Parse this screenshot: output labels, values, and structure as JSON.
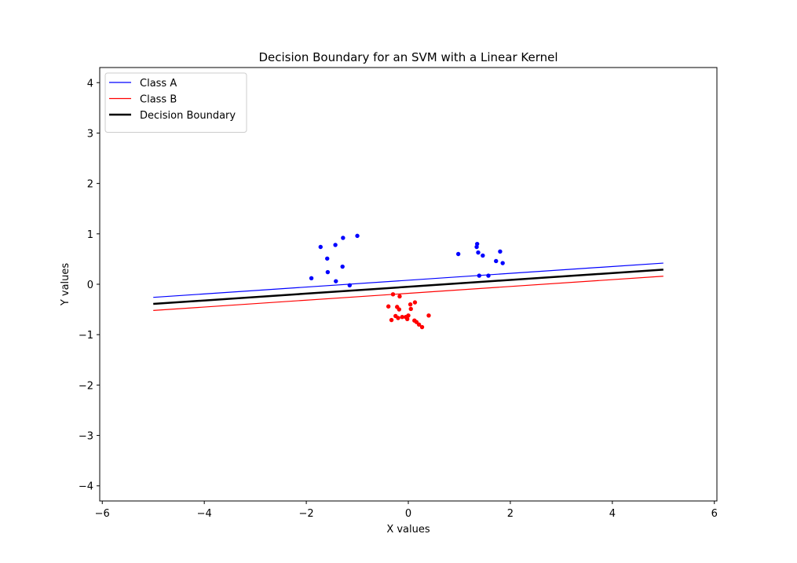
{
  "chart_data": {
    "type": "scatter",
    "title": "Decision Boundary for an SVM with a Linear Kernel",
    "xlabel": "X values",
    "ylabel": "Y values",
    "xlim": [
      -6.05,
      6.05
    ],
    "ylim": [
      -4.3,
      4.3
    ],
    "xticks": [
      -6,
      -4,
      -2,
      0,
      2,
      4,
      6
    ],
    "yticks": [
      -4,
      -3,
      -2,
      -1,
      0,
      1,
      2,
      3,
      4
    ],
    "grid": false,
    "legend_position": "top-left",
    "series": [
      {
        "name": "Class A",
        "kind": "line",
        "color": "#0000ff",
        "width": 1.2,
        "x": [
          -5,
          5
        ],
        "y": [
          -0.26,
          0.42
        ]
      },
      {
        "name": "Class B",
        "kind": "line",
        "color": "#ff0000",
        "width": 1.2,
        "x": [
          -5,
          5
        ],
        "y": [
          -0.52,
          0.16
        ]
      },
      {
        "name": "Decision Boundary",
        "kind": "line",
        "color": "#000000",
        "width": 2.5,
        "x": [
          -5,
          5
        ],
        "y": [
          -0.39,
          0.29
        ]
      },
      {
        "name": "",
        "kind": "points",
        "color": "#0000ff",
        "points": [
          [
            -1.0,
            0.96
          ],
          [
            -1.28,
            0.92
          ],
          [
            -1.43,
            0.78
          ],
          [
            -1.72,
            0.74
          ],
          [
            -1.59,
            0.51
          ],
          [
            -1.29,
            0.35
          ],
          [
            -1.58,
            0.24
          ],
          [
            -1.9,
            0.12
          ],
          [
            -1.42,
            0.06
          ],
          [
            -1.15,
            -0.02
          ],
          [
            1.35,
            0.8
          ],
          [
            1.34,
            0.74
          ],
          [
            1.37,
            0.63
          ],
          [
            1.46,
            0.57
          ],
          [
            0.98,
            0.6
          ],
          [
            1.8,
            0.65
          ],
          [
            1.72,
            0.46
          ],
          [
            1.85,
            0.42
          ],
          [
            1.39,
            0.17
          ],
          [
            1.57,
            0.17
          ]
        ]
      },
      {
        "name": "",
        "kind": "points",
        "color": "#ff0000",
        "points": [
          [
            -0.3,
            -0.2
          ],
          [
            -0.17,
            -0.24
          ],
          [
            -0.39,
            -0.44
          ],
          [
            -0.22,
            -0.45
          ],
          [
            -0.18,
            -0.5
          ],
          [
            0.13,
            -0.36
          ],
          [
            0.04,
            -0.4
          ],
          [
            0.05,
            -0.49
          ],
          [
            -0.25,
            -0.63
          ],
          [
            -0.2,
            -0.67
          ],
          [
            -0.12,
            -0.65
          ],
          [
            -0.05,
            -0.65
          ],
          [
            0.0,
            -0.62
          ],
          [
            -0.02,
            -0.69
          ],
          [
            0.12,
            -0.72
          ],
          [
            0.16,
            -0.75
          ],
          [
            0.21,
            -0.8
          ],
          [
            0.27,
            -0.85
          ],
          [
            0.4,
            -0.62
          ],
          [
            -0.33,
            -0.71
          ]
        ]
      }
    ]
  }
}
